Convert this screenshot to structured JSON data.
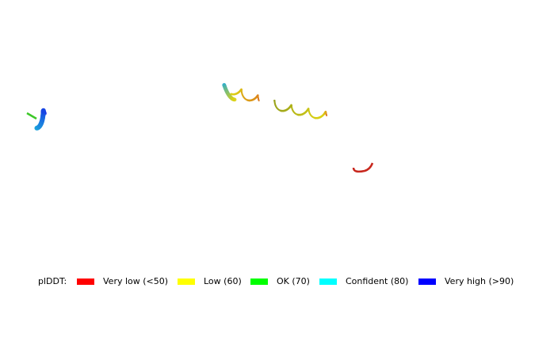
{
  "legend": {
    "title": "plDDT:",
    "items": [
      {
        "label": "Very low (<50)",
        "color": "#ff0000"
      },
      {
        "label": "Low (60)",
        "color": "#ffff00"
      },
      {
        "label": "OK (70)",
        "color": "#00ff00"
      },
      {
        "label": "Confident (80)",
        "color": "#00ffff"
      },
      {
        "label": "Very high (>90)",
        "color": "#0000ff"
      }
    ]
  }
}
